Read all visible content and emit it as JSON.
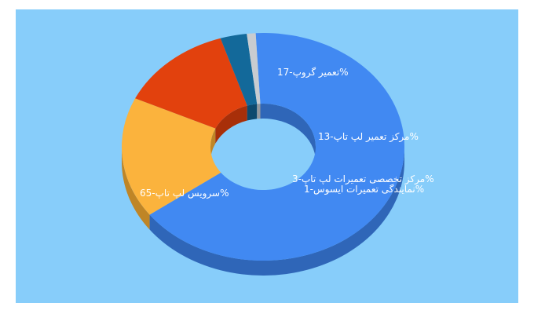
{
  "chart_data": {
    "type": "pie",
    "style": "3d-donut",
    "slices": [
      {
        "label": "سرویس لپ تاپ",
        "value": 65,
        "text": "سرویس لپ تاپ-65%",
        "color": "#4189f2",
        "side": "#2f66b8"
      },
      {
        "label": "تعمیر گروپ",
        "value": 17,
        "text": "تعمیر گروپ-17%",
        "color": "#fbb33d",
        "side": "#bf8526"
      },
      {
        "label": "مرکز تعمیر لپ تاپ",
        "value": 13,
        "text": "مرکز تعمیر لپ تاپ-13%",
        "color": "#e2410d",
        "side": "#a82f09"
      },
      {
        "label": "مرکز تخصصی تعمیرات لپ تاپ",
        "value": 3,
        "text": "مرکز تخصصی تعمیرات لپ تاپ-3%",
        "color": "#13699a",
        "side": "#0d4a6e"
      },
      {
        "label": "نمایندگی تعمیرات ایسوس",
        "value": 1,
        "text": "نمایندگی تعمیرات ایسوس-1%",
        "color": "#c8ccd0",
        "side": "#95999d"
      }
    ],
    "background": "#87cdfa"
  }
}
